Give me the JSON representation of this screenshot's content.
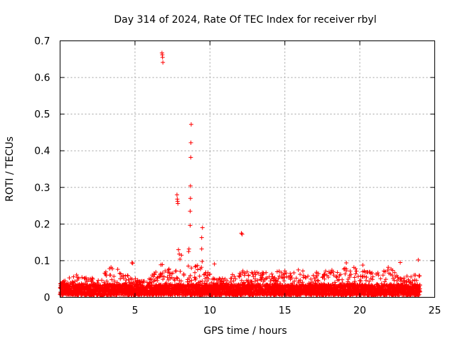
{
  "chart_data": {
    "type": "scatter",
    "title": "Day 314 of 2024, Rate Of TEC Index for receiver rbyl",
    "xlabel": "GPS time / hours",
    "ylabel": "ROTI / TECUs",
    "xlim": [
      0,
      25
    ],
    "ylim": [
      0,
      0.7
    ],
    "x_ticks": [
      0,
      5,
      10,
      15,
      20,
      25
    ],
    "x_tick_labels": [
      "0",
      "5",
      "10",
      "15",
      "20",
      "25"
    ],
    "y_ticks": [
      0,
      0.1,
      0.2,
      0.3,
      0.4,
      0.5,
      0.6,
      0.7
    ],
    "y_tick_labels": [
      "0",
      "0.1",
      "0.2",
      "0.3",
      "0.4",
      "0.5",
      "0.6",
      "0.7"
    ],
    "grid": true,
    "marker": "+",
    "series": [
      {
        "name": "ROTI",
        "color": "#ff0000",
        "baseline": {
          "x_start": 0.0,
          "x_end": 24.0,
          "step": 0.02,
          "typical_range": [
            0.005,
            0.035
          ],
          "envelope": [
            {
              "x": 0.0,
              "max": 0.04
            },
            {
              "x": 1.0,
              "max": 0.065
            },
            {
              "x": 2.0,
              "max": 0.05
            },
            {
              "x": 3.5,
              "max": 0.085
            },
            {
              "x": 4.5,
              "max": 0.06
            },
            {
              "x": 5.5,
              "max": 0.045
            },
            {
              "x": 6.7,
              "max": 0.095
            },
            {
              "x": 7.5,
              "max": 0.07
            },
            {
              "x": 8.5,
              "max": 0.11
            },
            {
              "x": 9.5,
              "max": 0.08
            },
            {
              "x": 10.5,
              "max": 0.05
            },
            {
              "x": 12.0,
              "max": 0.07
            },
            {
              "x": 13.5,
              "max": 0.07
            },
            {
              "x": 14.5,
              "max": 0.075
            },
            {
              "x": 16.0,
              "max": 0.065
            },
            {
              "x": 17.5,
              "max": 0.07
            },
            {
              "x": 19.0,
              "max": 0.09
            },
            {
              "x": 20.5,
              "max": 0.07
            },
            {
              "x": 22.0,
              "max": 0.08
            },
            {
              "x": 23.0,
              "max": 0.07
            },
            {
              "x": 24.0,
              "max": 0.06
            }
          ]
        },
        "points": [
          {
            "x": 6.8,
            "y": 0.667
          },
          {
            "x": 6.82,
            "y": 0.662
          },
          {
            "x": 6.84,
            "y": 0.655
          },
          {
            "x": 6.86,
            "y": 0.641
          },
          {
            "x": 7.8,
            "y": 0.28
          },
          {
            "x": 7.82,
            "y": 0.268
          },
          {
            "x": 7.84,
            "y": 0.262
          },
          {
            "x": 7.86,
            "y": 0.256
          },
          {
            "x": 8.75,
            "y": 0.472
          },
          {
            "x": 8.73,
            "y": 0.422
          },
          {
            "x": 8.72,
            "y": 0.382
          },
          {
            "x": 8.7,
            "y": 0.304
          },
          {
            "x": 8.7,
            "y": 0.27
          },
          {
            "x": 8.68,
            "y": 0.235
          },
          {
            "x": 8.68,
            "y": 0.196
          },
          {
            "x": 8.6,
            "y": 0.132
          },
          {
            "x": 8.58,
            "y": 0.125
          },
          {
            "x": 9.5,
            "y": 0.19
          },
          {
            "x": 9.45,
            "y": 0.163
          },
          {
            "x": 9.45,
            "y": 0.132
          },
          {
            "x": 9.48,
            "y": 0.098
          },
          {
            "x": 10.3,
            "y": 0.091
          },
          {
            "x": 12.1,
            "y": 0.175
          },
          {
            "x": 12.15,
            "y": 0.172
          },
          {
            "x": 4.8,
            "y": 0.094
          },
          {
            "x": 4.85,
            "y": 0.093
          },
          {
            "x": 7.9,
            "y": 0.13
          },
          {
            "x": 7.95,
            "y": 0.118
          },
          {
            "x": 8.1,
            "y": 0.115
          },
          {
            "x": 8.0,
            "y": 0.104
          },
          {
            "x": 19.1,
            "y": 0.094
          },
          {
            "x": 20.2,
            "y": 0.088
          },
          {
            "x": 22.7,
            "y": 0.095
          },
          {
            "x": 23.9,
            "y": 0.102
          },
          {
            "x": 23.95,
            "y": 0.058
          },
          {
            "x": 21.9,
            "y": 0.082
          },
          {
            "x": 3.4,
            "y": 0.082
          },
          {
            "x": 12.2,
            "y": 0.072
          },
          {
            "x": 15.0,
            "y": 0.072
          },
          {
            "x": 15.9,
            "y": 0.075
          },
          {
            "x": 16.2,
            "y": 0.072
          }
        ]
      }
    ]
  }
}
